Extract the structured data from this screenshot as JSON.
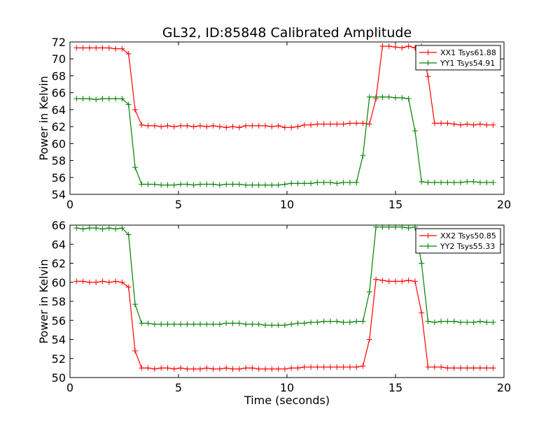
{
  "chart_data": {
    "title": "GL32, ID:85848 Calibrated Amplitude",
    "xlabel": "Time (seconds)",
    "panels": [
      {
        "type": "line",
        "ylabel": "Power in Kelvin",
        "xlim": [
          0,
          20
        ],
        "ylim": [
          54,
          72
        ],
        "xticks": [
          "0",
          "5",
          "10",
          "15",
          "20"
        ],
        "yticks": [
          "54",
          "56",
          "58",
          "60",
          "62",
          "64",
          "66",
          "68",
          "70",
          "72"
        ],
        "grid": false,
        "legend_position": "top-right",
        "x": [
          0.3,
          0.6,
          0.9,
          1.2,
          1.5,
          1.8,
          2.1,
          2.4,
          2.7,
          3.0,
          3.3,
          3.6,
          3.9,
          4.2,
          4.5,
          4.8,
          5.1,
          5.4,
          5.7,
          6.0,
          6.3,
          6.6,
          6.9,
          7.2,
          7.5,
          7.8,
          8.1,
          8.4,
          8.7,
          9.0,
          9.3,
          9.6,
          9.9,
          10.2,
          10.5,
          10.8,
          11.1,
          11.4,
          11.7,
          12.0,
          12.3,
          12.6,
          12.9,
          13.2,
          13.5,
          13.8,
          14.1,
          14.4,
          14.7,
          15.0,
          15.3,
          15.6,
          15.9,
          16.2,
          16.5,
          16.8,
          17.1,
          17.4,
          17.7,
          18.0,
          18.3,
          18.6,
          18.9,
          19.2,
          19.5
        ],
        "series": [
          {
            "name": "XX1 Tsys61.88",
            "color": "#ff0000",
            "values": [
              71.3,
              71.3,
              71.3,
              71.3,
              71.3,
              71.3,
              71.2,
              71.2,
              70.6,
              64.0,
              62.2,
              62.1,
              62.1,
              62.0,
              62.1,
              62.0,
              62.1,
              62.1,
              62.0,
              62.1,
              62.0,
              62.1,
              62.0,
              61.9,
              62.0,
              61.9,
              62.1,
              62.1,
              62.1,
              62.1,
              62.0,
              62.1,
              61.9,
              61.9,
              62.0,
              62.2,
              62.2,
              62.3,
              62.3,
              62.3,
              62.3,
              62.3,
              62.4,
              62.4,
              62.4,
              62.3,
              65.3,
              71.5,
              71.5,
              71.4,
              71.3,
              71.5,
              71.3,
              71.5,
              67.9,
              62.4,
              62.4,
              62.4,
              62.3,
              62.2,
              62.3,
              62.2,
              62.3,
              62.2,
              62.2
            ]
          },
          {
            "name": "YY1 Tsys54.91",
            "color": "#008000",
            "values": [
              65.3,
              65.3,
              65.3,
              65.2,
              65.3,
              65.3,
              65.3,
              65.3,
              64.6,
              57.2,
              55.2,
              55.2,
              55.2,
              55.1,
              55.1,
              55.1,
              55.2,
              55.2,
              55.1,
              55.2,
              55.2,
              55.2,
              55.1,
              55.2,
              55.2,
              55.2,
              55.1,
              55.1,
              55.1,
              55.1,
              55.1,
              55.1,
              55.2,
              55.3,
              55.3,
              55.3,
              55.3,
              55.4,
              55.4,
              55.4,
              55.3,
              55.4,
              55.4,
              55.4,
              58.6,
              65.5,
              65.5,
              65.5,
              65.5,
              65.4,
              65.4,
              65.3,
              61.5,
              55.5,
              55.4,
              55.4,
              55.4,
              55.4,
              55.4,
              55.4,
              55.5,
              55.5,
              55.4,
              55.4,
              55.4
            ]
          }
        ]
      },
      {
        "type": "line",
        "ylabel": "Power in Kelvin",
        "xlabel": "Time (seconds)",
        "xlim": [
          0,
          20
        ],
        "ylim": [
          50,
          66
        ],
        "xticks": [
          "0",
          "5",
          "10",
          "15",
          "20"
        ],
        "yticks": [
          "50",
          "52",
          "54",
          "56",
          "58",
          "60",
          "62",
          "64",
          "66"
        ],
        "grid": false,
        "legend_position": "top-right",
        "x": [
          0.3,
          0.6,
          0.9,
          1.2,
          1.5,
          1.8,
          2.1,
          2.4,
          2.7,
          3.0,
          3.3,
          3.6,
          3.9,
          4.2,
          4.5,
          4.8,
          5.1,
          5.4,
          5.7,
          6.0,
          6.3,
          6.6,
          6.9,
          7.2,
          7.5,
          7.8,
          8.1,
          8.4,
          8.7,
          9.0,
          9.3,
          9.6,
          9.9,
          10.2,
          10.5,
          10.8,
          11.1,
          11.4,
          11.7,
          12.0,
          12.3,
          12.6,
          12.9,
          13.2,
          13.5,
          13.8,
          14.1,
          14.4,
          14.7,
          15.0,
          15.3,
          15.6,
          15.9,
          16.2,
          16.5,
          16.8,
          17.1,
          17.4,
          17.7,
          18.0,
          18.3,
          18.6,
          18.9,
          19.2,
          19.5
        ],
        "series": [
          {
            "name": "XX2 Tsys50.85",
            "color": "#ff0000",
            "values": [
              60.1,
              60.1,
              60.0,
              60.0,
              60.1,
              60.0,
              60.1,
              60.0,
              59.5,
              52.8,
              51.0,
              51.0,
              50.9,
              51.0,
              51.0,
              50.9,
              51.0,
              50.9,
              50.9,
              50.9,
              51.0,
              50.9,
              50.9,
              51.0,
              50.9,
              50.9,
              51.0,
              51.0,
              50.9,
              50.9,
              50.9,
              50.9,
              50.9,
              51.0,
              51.0,
              51.1,
              51.1,
              51.1,
              51.1,
              51.1,
              51.1,
              51.1,
              51.1,
              51.1,
              51.2,
              54.0,
              60.3,
              60.2,
              60.1,
              60.1,
              60.1,
              60.2,
              60.1,
              56.8,
              51.1,
              51.1,
              51.1,
              51.0,
              51.0,
              51.0,
              51.0,
              51.0,
              51.0,
              51.0,
              51.0
            ]
          },
          {
            "name": "YY2 Tsys55.33",
            "color": "#008000",
            "values": [
              65.7,
              65.6,
              65.7,
              65.7,
              65.6,
              65.7,
              65.6,
              65.7,
              65.0,
              57.7,
              55.7,
              55.7,
              55.6,
              55.6,
              55.6,
              55.6,
              55.6,
              55.6,
              55.6,
              55.6,
              55.6,
              55.6,
              55.6,
              55.7,
              55.7,
              55.7,
              55.6,
              55.6,
              55.6,
              55.5,
              55.5,
              55.5,
              55.5,
              55.6,
              55.7,
              55.7,
              55.8,
              55.8,
              55.9,
              55.9,
              55.9,
              55.8,
              55.8,
              55.9,
              55.9,
              59.0,
              65.8,
              65.8,
              65.8,
              65.8,
              65.8,
              65.7,
              65.8,
              62.0,
              55.9,
              55.8,
              55.9,
              55.9,
              55.9,
              55.8,
              55.8,
              55.8,
              55.9,
              55.8,
              55.8
            ]
          }
        ]
      }
    ]
  }
}
